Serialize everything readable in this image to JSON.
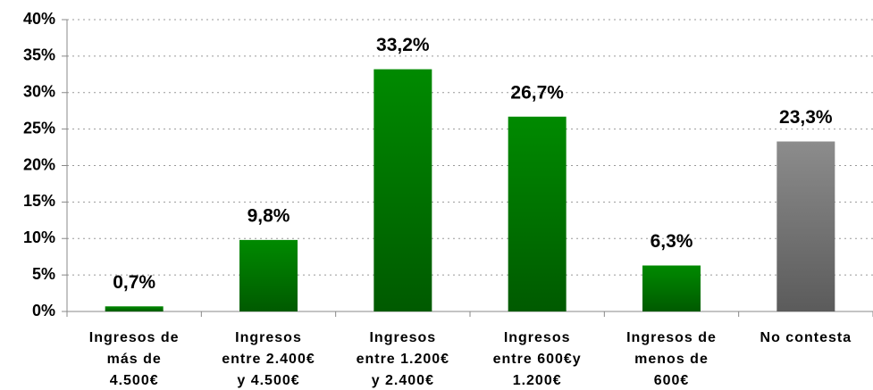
{
  "chart_data": {
    "type": "bar",
    "categories": [
      [
        "Ingresos de",
        "más de",
        "4.500€"
      ],
      [
        "Ingresos",
        "entre 2.400€",
        "y 4.500€"
      ],
      [
        "Ingresos",
        "entre 1.200€",
        "y 2.400€"
      ],
      [
        "Ingresos",
        "entre 600€y",
        "1.200€"
      ],
      [
        "Ingresos de",
        "menos de",
        "600€"
      ],
      [
        "No contesta"
      ]
    ],
    "values": [
      0.7,
      9.8,
      33.2,
      26.7,
      6.3,
      23.3
    ],
    "value_labels": [
      "0,7%",
      "9,8%",
      "33,2%",
      "26,7%",
      "6,3%",
      "23,3%"
    ],
    "colors": [
      "#008a00",
      "#008a00",
      "#008a00",
      "#008a00",
      "#008a00",
      "#8c8c8c"
    ],
    "ylim": [
      0,
      40
    ],
    "yticks": [
      {
        "value": 0,
        "label": "0%"
      },
      {
        "value": 5,
        "label": "5%"
      },
      {
        "value": 10,
        "label": "10%"
      },
      {
        "value": 15,
        "label": "15%"
      },
      {
        "value": 20,
        "label": "20%"
      },
      {
        "value": 25,
        "label": "25%"
      },
      {
        "value": 30,
        "label": "30%"
      },
      {
        "value": 35,
        "label": "35%"
      },
      {
        "value": 40,
        "label": "40%"
      }
    ],
    "grid": true
  }
}
